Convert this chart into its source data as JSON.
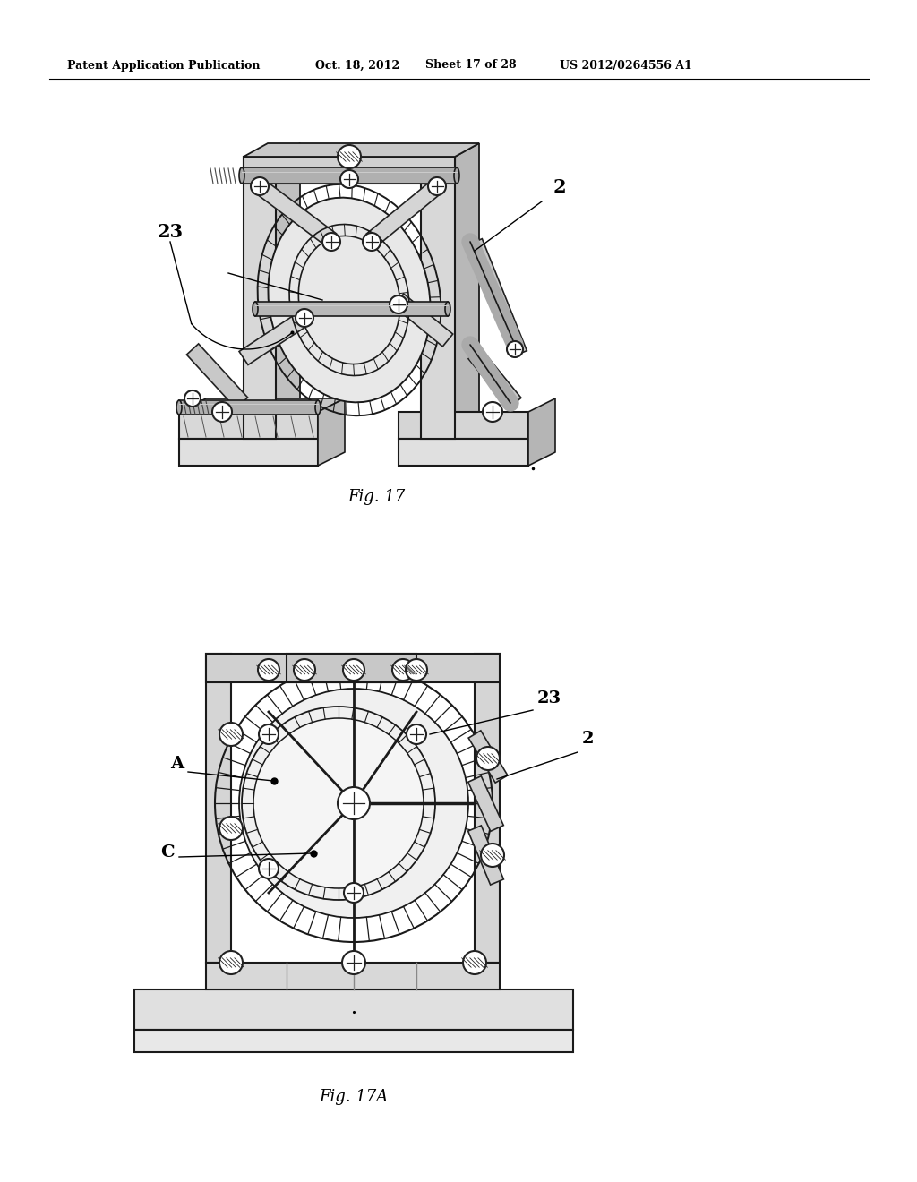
{
  "bg_color": "#ffffff",
  "header_text": "Patent Application Publication",
  "header_date": "Oct. 18, 2012",
  "header_sheet": "Sheet 17 of 28",
  "header_patent": "US 2012/0264556 A1",
  "fig17_label": "Fig. 17",
  "fig17a_label": "Fig. 17A",
  "label_2_fig17": "2",
  "label_23_fig17": "23",
  "label_A": "A",
  "label_C": "C",
  "label_23_fig17a": "23",
  "label_2_fig17a": "2",
  "line_color": "#1a1a1a",
  "fill_light": "#e8e8e8",
  "fill_mid": "#cccccc",
  "fill_dark": "#aaaaaa"
}
